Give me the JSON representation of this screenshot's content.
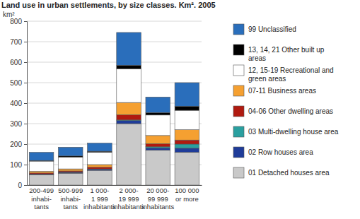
{
  "chart_data": {
    "type": "bar",
    "stacked": true,
    "title": "Land use in urban settlements, by size classes. Km². 2005",
    "y_label": "km²",
    "categories": [
      "200-499\ninhabi-\ntants",
      "500-999\ninhabi-\ntants",
      "1 000-\n1 999\ninhabitants",
      "2 000-\n19 999\ninhabitants",
      "20 000-\n99 999\ninhabitants",
      "100 000\nor more"
    ],
    "series": [
      {
        "name": "01 Detached houses area",
        "color": "#c9c9c9",
        "values": [
          50,
          58,
          72,
          300,
          170,
          160
        ]
      },
      {
        "name": "02 Row houses area",
        "color": "#1f3c99",
        "values": [
          3,
          4,
          5,
          15,
          12,
          20
        ]
      },
      {
        "name": "03 Multi-dwelling house area",
        "color": "#2a9f9f",
        "values": [
          1,
          1,
          2,
          3,
          5,
          20
        ]
      },
      {
        "name": "04-06 Other dwelling areas",
        "color": "#b01a10",
        "values": [
          5,
          6,
          8,
          25,
          15,
          20
        ]
      },
      {
        "name": "07-11 Business areas",
        "color": "#f5a031",
        "values": [
          8,
          10,
          13,
          60,
          40,
          50
        ]
      },
      {
        "name": "12, 15-19 Recreational and\ngreen areas",
        "color": "#ffffff",
        "values": [
          50,
          58,
          60,
          165,
          100,
          95
        ]
      },
      {
        "name": "13, 14, 21 Other built up\nareas",
        "color": "#000000",
        "values": [
          3,
          5,
          5,
          17,
          12,
          20
        ]
      },
      {
        "name": "99 Unclassified",
        "color": "#2a6ebb",
        "values": [
          40,
          43,
          40,
          160,
          76,
          115
        ]
      }
    ],
    "ylim": [
      0,
      800
    ],
    "yticks": [
      0,
      100,
      200,
      300,
      400,
      500,
      600,
      700,
      800
    ],
    "grid": true,
    "legend": "right"
  }
}
